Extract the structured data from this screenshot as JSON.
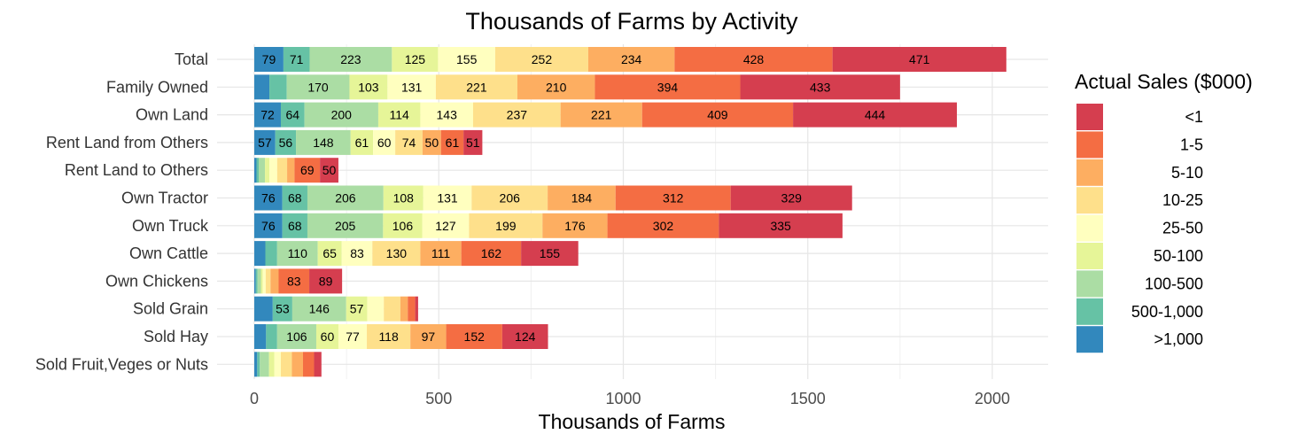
{
  "chart_data": {
    "type": "bar",
    "orientation": "horizontal",
    "stacked": true,
    "title": "Thousands of Farms by Activity",
    "xlabel": "Thousands of Farms",
    "ylabel": "",
    "xlim": [
      0,
      2150
    ],
    "x_ticks": [
      0,
      500,
      1000,
      1500,
      2000
    ],
    "grid": true,
    "legend": {
      "title": "Actual Sales ($000)",
      "position": "right",
      "entries": [
        "<1",
        "1-5",
        "5-10",
        "10-25",
        "25-50",
        "50-100",
        "100-500",
        "500-1,000",
        ">1,000"
      ]
    },
    "categories": [
      "Total",
      "Family Owned",
      "Own Land",
      "Rent Land from Others",
      "Rent Land to Others",
      "Own Tractor",
      "Own Truck",
      "Own Cattle",
      "Own Chickens",
      "Sold Grain",
      "Sold Hay",
      "Sold Fruit,Veges or Nuts"
    ],
    "series": [
      {
        "name": ">1,000",
        "color": "#3288bd",
        "values": [
          79,
          41,
          72,
          57,
          6,
          76,
          76,
          30,
          4,
          50,
          32,
          8
        ],
        "labels": [
          "79",
          "",
          "72",
          "57",
          "",
          "76",
          "76",
          "",
          "",
          "",
          "",
          ""
        ]
      },
      {
        "name": "500-1,000",
        "color": "#66c2a5",
        "values": [
          71,
          47,
          64,
          56,
          6,
          68,
          68,
          32,
          5,
          53,
          30,
          7
        ],
        "labels": [
          "71",
          "",
          "64",
          "56",
          "",
          "68",
          "68",
          "",
          "",
          "53",
          "",
          ""
        ]
      },
      {
        "name": "100-500",
        "color": "#abdda4",
        "values": [
          223,
          170,
          200,
          148,
          17,
          206,
          205,
          110,
          9,
          146,
          106,
          25
        ],
        "labels": [
          "223",
          "170",
          "200",
          "148",
          "",
          "206",
          "205",
          "110",
          "",
          "146",
          "106",
          ""
        ]
      },
      {
        "name": "50-100",
        "color": "#e6f598",
        "values": [
          125,
          103,
          114,
          61,
          12,
          108,
          106,
          65,
          5,
          57,
          60,
          14
        ],
        "labels": [
          "125",
          "103",
          "114",
          "61",
          "",
          "108",
          "106",
          "65",
          "",
          "57",
          "60",
          ""
        ]
      },
      {
        "name": "25-50",
        "color": "#ffffbf",
        "values": [
          155,
          131,
          143,
          60,
          21,
          131,
          127,
          83,
          8,
          45,
          77,
          18
        ],
        "labels": [
          "155",
          "131",
          "143",
          "60",
          "",
          "131",
          "127",
          "83",
          "",
          "",
          "77",
          ""
        ]
      },
      {
        "name": "10-25",
        "color": "#fee08b",
        "values": [
          252,
          221,
          237,
          74,
          27,
          206,
          199,
          130,
          13,
          45,
          118,
          30
        ],
        "labels": [
          "252",
          "221",
          "237",
          "74",
          "",
          "206",
          "199",
          "130",
          "",
          "",
          "118",
          ""
        ]
      },
      {
        "name": "5-10",
        "color": "#fdae61",
        "values": [
          234,
          210,
          221,
          50,
          20,
          184,
          176,
          111,
          22,
          20,
          97,
          30
        ],
        "labels": [
          "234",
          "210",
          "221",
          "50",
          "",
          "184",
          "176",
          "111",
          "",
          "",
          "97",
          ""
        ]
      },
      {
        "name": "1-5",
        "color": "#f46d43",
        "values": [
          428,
          394,
          409,
          61,
          69,
          312,
          302,
          162,
          83,
          20,
          152,
          30
        ],
        "labels": [
          "428",
          "394",
          "409",
          "61",
          "69",
          "312",
          "302",
          "162",
          "83",
          "",
          "152",
          ""
        ]
      },
      {
        "name": "<1",
        "color": "#d53e4f",
        "values": [
          471,
          433,
          444,
          51,
          50,
          329,
          335,
          155,
          89,
          8,
          124,
          20
        ],
        "labels": [
          "471",
          "433",
          "444",
          "51",
          "50",
          "329",
          "335",
          "155",
          "89",
          "",
          "124",
          ""
        ]
      }
    ]
  }
}
